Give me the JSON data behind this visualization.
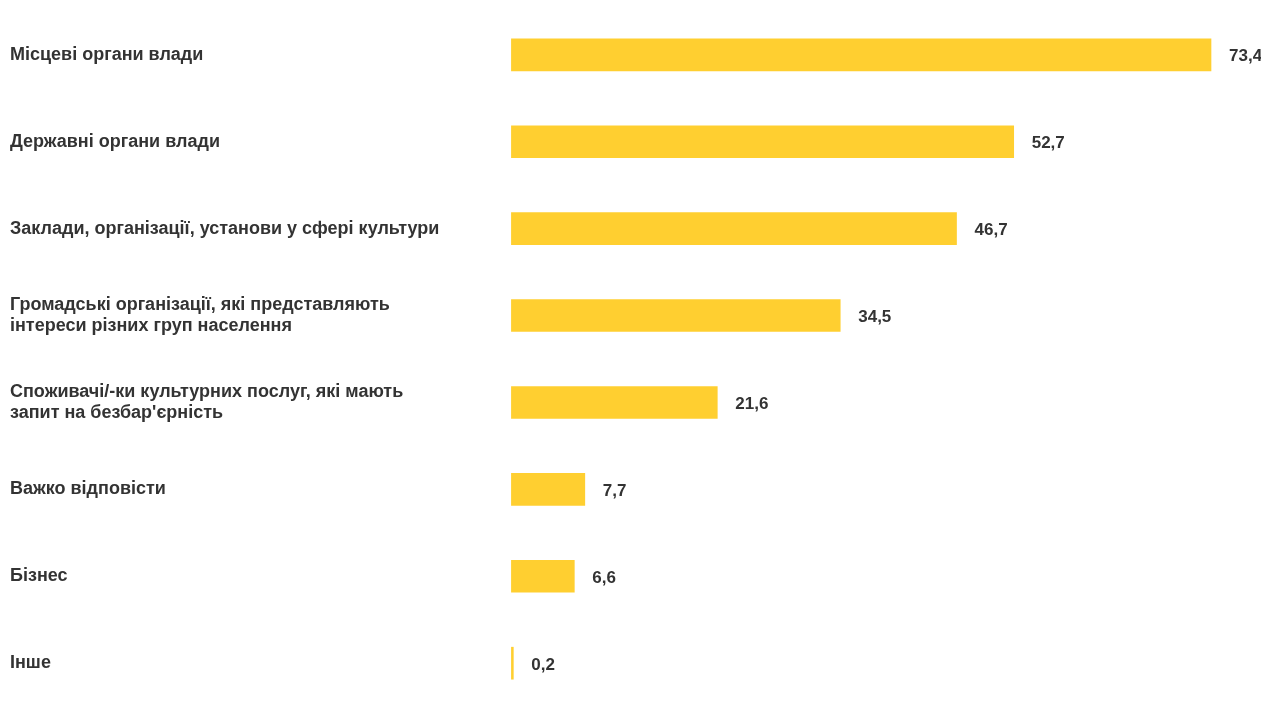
{
  "chart_data": {
    "type": "bar",
    "orientation": "horizontal",
    "categories": [
      "Місцеві органи влади",
      "Державні органи влади",
      "Заклади, організації, установи у сфері культури",
      "Громадські організації, які представляють інтереси різних груп населення",
      "Споживачі/-ки культурних послуг, які мають запит на безбар'єрність",
      "Важко відповісти",
      "Бізнес",
      "Інше"
    ],
    "values": [
      73.4,
      52.7,
      46.7,
      34.5,
      21.6,
      7.7,
      6.6,
      0.2
    ],
    "value_labels": [
      "73,4",
      "52,7",
      "46,7",
      "34,5",
      "21,6",
      "7,7",
      "6,6",
      "0,2"
    ],
    "color": "#ffcf30",
    "legend": false
  }
}
